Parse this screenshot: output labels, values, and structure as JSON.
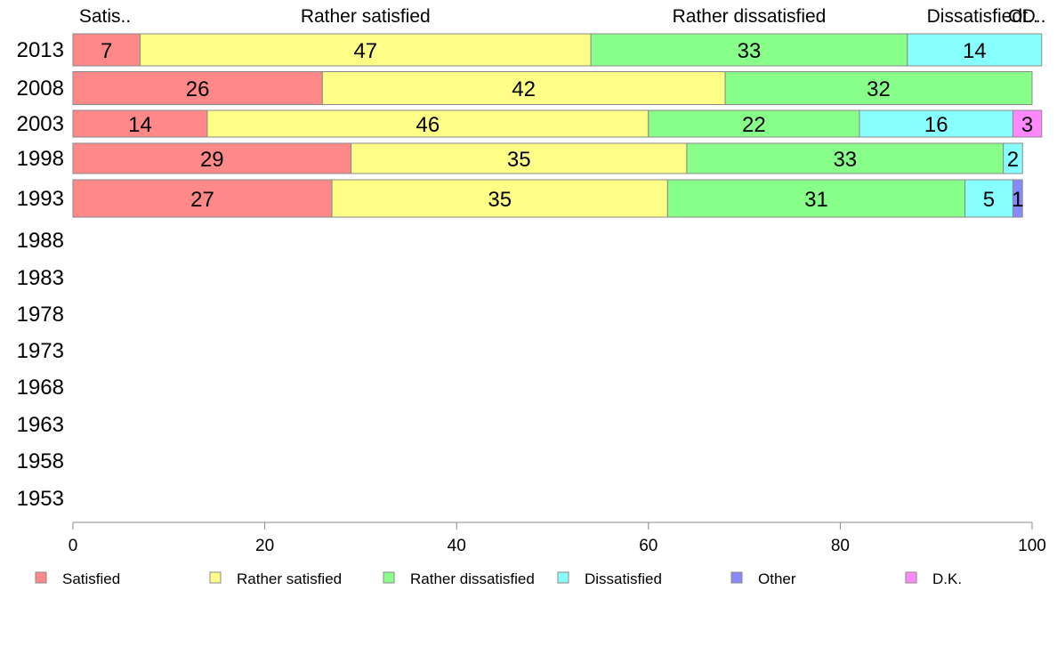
{
  "chart_data": {
    "type": "bar",
    "orientation": "horizontal",
    "stacked": true,
    "categories": [
      "2013",
      "2008",
      "2003",
      "1998",
      "1993",
      "1988",
      "1983",
      "1978",
      "1973",
      "1968",
      "1963",
      "1958",
      "1953"
    ],
    "series": [
      {
        "name": "Satisfied",
        "color": "#ff8888",
        "values": [
          7,
          26,
          14,
          29,
          27,
          null,
          null,
          null,
          null,
          null,
          null,
          null,
          null
        ]
      },
      {
        "name": "Rather satisfied",
        "color": "#ffff88",
        "values": [
          47,
          42,
          46,
          35,
          35,
          null,
          null,
          null,
          null,
          null,
          null,
          null,
          null
        ]
      },
      {
        "name": "Rather dissatisfied",
        "color": "#88ff88",
        "values": [
          33,
          32,
          22,
          33,
          31,
          null,
          null,
          null,
          null,
          null,
          null,
          null,
          null
        ]
      },
      {
        "name": "Dissatisfied",
        "color": "#88ffff",
        "values": [
          14,
          0,
          16,
          2,
          5,
          null,
          null,
          null,
          null,
          null,
          null,
          null,
          null
        ]
      },
      {
        "name": "Other",
        "color": "#8888ff",
        "values": [
          0,
          0,
          0,
          0,
          1,
          null,
          null,
          null,
          null,
          null,
          null,
          null,
          null
        ]
      },
      {
        "name": "D.K.",
        "color": "#ff88ff",
        "values": [
          0,
          0,
          3,
          0,
          0,
          null,
          null,
          null,
          null,
          null,
          null,
          null,
          null
        ]
      }
    ],
    "top_labels": [
      "Satis..",
      "Rather satisfied",
      "Rather dissatisfied",
      "Dissatisfied",
      "Ot..",
      "D.."
    ],
    "xlim": [
      0,
      100
    ],
    "xticks": [
      0,
      20,
      40,
      60,
      80,
      100
    ],
    "grid": false,
    "legend_position": "bottom"
  }
}
